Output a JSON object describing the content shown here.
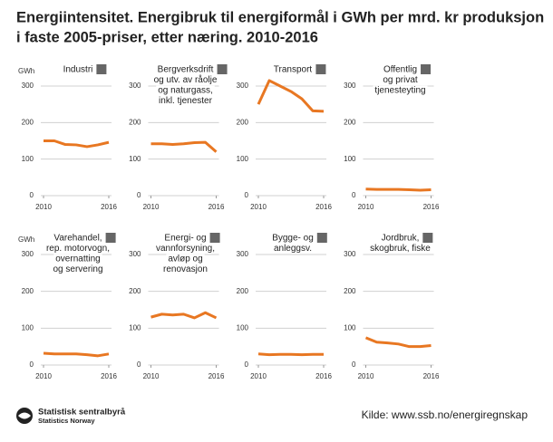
{
  "title": [
    "Energiintensitet. Energibruk til energiformål i GWh per mrd. kr produksjon",
    "i faste 2005-priser, etter næring. 2010-2016"
  ],
  "chart_data": [
    {
      "type": "line",
      "title": [
        "Industri"
      ],
      "y_label": "GWh",
      "x": [
        2010,
        2011,
        2012,
        2013,
        2014,
        2015,
        2016
      ],
      "values": [
        150,
        150,
        140,
        139,
        134,
        139,
        146
      ],
      "color": "#e87722",
      "xlim": [
        2010,
        2016
      ],
      "xticks": [
        2010,
        2016
      ],
      "ylim": [
        0,
        300
      ],
      "yticks": [
        0,
        100,
        200,
        300
      ],
      "grid": true
    },
    {
      "type": "line",
      "title": [
        "Bergverksdrift",
        "og utv. av råolje",
        "og naturgass,",
        "inkl. tjenester"
      ],
      "x": [
        2010,
        2011,
        2012,
        2013,
        2014,
        2015,
        2016
      ],
      "values": [
        142,
        142,
        140,
        142,
        145,
        146,
        120
      ],
      "color": "#e87722",
      "xlim": [
        2010,
        2016
      ],
      "xticks": [
        2010,
        2016
      ],
      "ylim": [
        0,
        300
      ],
      "yticks": [
        0,
        100,
        200,
        300
      ],
      "grid": true
    },
    {
      "type": "line",
      "title": [
        "Transport"
      ],
      "x": [
        2010,
        2011,
        2012,
        2013,
        2014,
        2015,
        2016
      ],
      "values": [
        250,
        315,
        300,
        285,
        265,
        232,
        231
      ],
      "color": "#e87722",
      "xlim": [
        2010,
        2016
      ],
      "xticks": [
        2010,
        2016
      ],
      "ylim": [
        0,
        300
      ],
      "yticks": [
        0,
        100,
        200,
        300
      ],
      "grid": true
    },
    {
      "type": "line",
      "title": [
        "Offentlig",
        "og privat",
        "tjenesteyting"
      ],
      "x": [
        2010,
        2011,
        2012,
        2013,
        2014,
        2015,
        2016
      ],
      "values": [
        18,
        17,
        17,
        17,
        16,
        15,
        16
      ],
      "color": "#e87722",
      "xlim": [
        2010,
        2016
      ],
      "xticks": [
        2010,
        2016
      ],
      "ylim": [
        0,
        300
      ],
      "yticks": [
        0,
        100,
        200,
        300
      ],
      "grid": true
    },
    {
      "type": "line",
      "title": [
        "Varehandel,",
        "rep. motorvogn,",
        "overnatting",
        "og servering"
      ],
      "y_label": "GWh",
      "x": [
        2010,
        2011,
        2012,
        2013,
        2014,
        2015,
        2016
      ],
      "values": [
        32,
        30,
        30,
        30,
        28,
        25,
        30
      ],
      "color": "#e87722",
      "xlim": [
        2010,
        2016
      ],
      "xticks": [
        2010,
        2016
      ],
      "ylim": [
        0,
        300
      ],
      "yticks": [
        0,
        100,
        200,
        300
      ],
      "grid": true
    },
    {
      "type": "line",
      "title": [
        "Energi- og",
        "vannforsyning,",
        "avløp og",
        "renovasjon"
      ],
      "x": [
        2010,
        2011,
        2012,
        2013,
        2014,
        2015,
        2016
      ],
      "values": [
        130,
        138,
        136,
        138,
        128,
        142,
        128
      ],
      "color": "#e87722",
      "xlim": [
        2010,
        2016
      ],
      "xticks": [
        2010,
        2016
      ],
      "ylim": [
        0,
        300
      ],
      "yticks": [
        0,
        100,
        200,
        300
      ],
      "grid": true
    },
    {
      "type": "line",
      "title": [
        "Bygge- og",
        "anleggsv."
      ],
      "x": [
        2010,
        2011,
        2012,
        2013,
        2014,
        2015,
        2016
      ],
      "values": [
        30,
        28,
        29,
        29,
        28,
        29,
        29
      ],
      "color": "#e87722",
      "xlim": [
        2010,
        2016
      ],
      "xticks": [
        2010,
        2016
      ],
      "ylim": [
        0,
        300
      ],
      "yticks": [
        0,
        100,
        200,
        300
      ],
      "grid": true
    },
    {
      "type": "line",
      "title": [
        "Jordbruk,",
        "skogbruk, fiske"
      ],
      "x": [
        2010,
        2011,
        2012,
        2013,
        2014,
        2015,
        2016
      ],
      "values": [
        74,
        62,
        60,
        57,
        50,
        50,
        53
      ],
      "color": "#e87722",
      "xlim": [
        2010,
        2016
      ],
      "xticks": [
        2010,
        2016
      ],
      "ylim": [
        0,
        300
      ],
      "yticks": [
        0,
        100,
        200,
        300
      ],
      "grid": true
    }
  ],
  "logo": [
    "Statistisk sentralbyrå",
    "Statistics Norway"
  ],
  "source": "Kilde: www.ssb.no/energiregnskap"
}
